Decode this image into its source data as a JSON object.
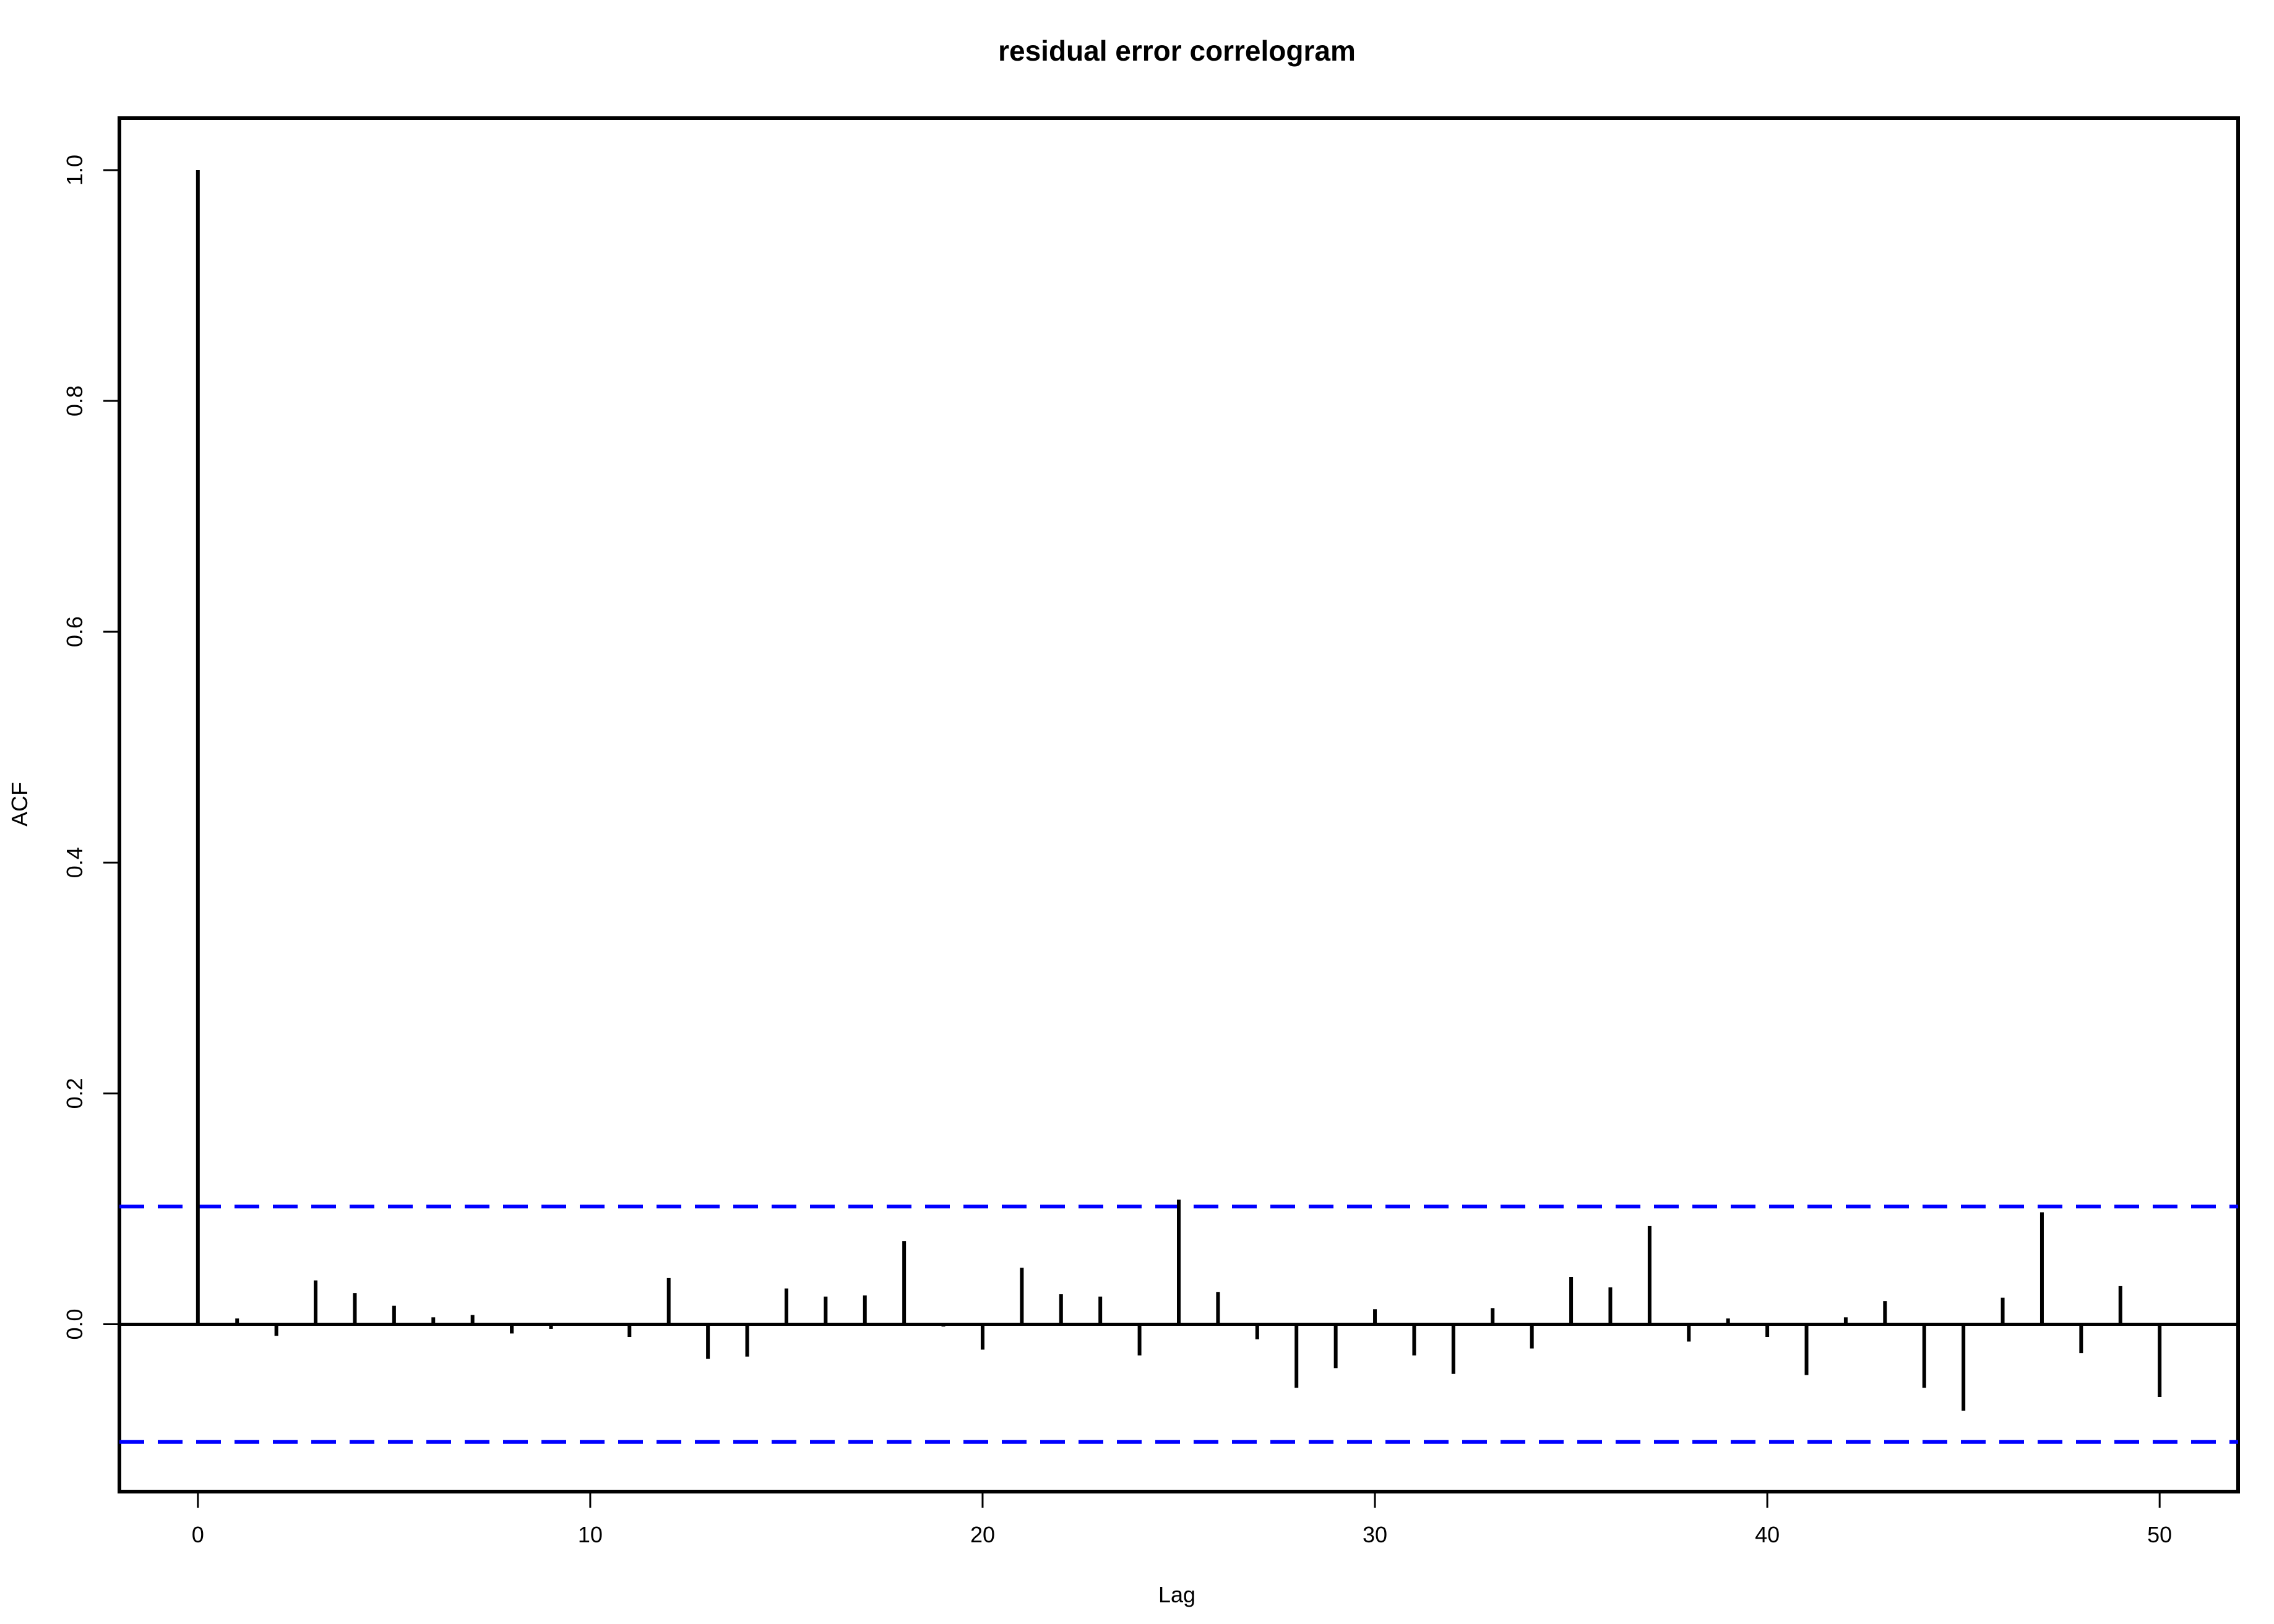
{
  "chart_data": {
    "type": "bar",
    "title": "residual error correlogram",
    "xlabel": "Lag",
    "ylabel": "ACF",
    "xlim": [
      -2,
      52
    ],
    "ylim": [
      -0.145,
      1.045
    ],
    "x_ticks": [
      0,
      10,
      20,
      30,
      40,
      50
    ],
    "x_tick_labels": [
      "0",
      "10",
      "20",
      "30",
      "40",
      "50"
    ],
    "y_ticks": [
      0.0,
      0.2,
      0.4,
      0.6,
      0.8,
      1.0
    ],
    "y_tick_labels": [
      "0.0",
      "0.2",
      "0.4",
      "0.6",
      "0.8",
      "1.0"
    ],
    "lags": [
      0,
      1,
      2,
      3,
      4,
      5,
      6,
      7,
      8,
      9,
      10,
      11,
      12,
      13,
      14,
      15,
      16,
      17,
      18,
      19,
      20,
      21,
      22,
      23,
      24,
      25,
      26,
      27,
      28,
      29,
      30,
      31,
      32,
      33,
      34,
      35,
      36,
      37,
      38,
      39,
      40,
      41,
      42,
      43,
      44,
      45,
      46,
      47,
      48,
      49,
      50
    ],
    "acf": [
      1.0,
      0.005,
      -0.01,
      0.038,
      0.027,
      0.016,
      0.006,
      0.008,
      -0.008,
      -0.004,
      0.0,
      -0.011,
      0.04,
      -0.03,
      -0.028,
      0.031,
      0.024,
      0.025,
      0.072,
      -0.002,
      -0.022,
      0.049,
      0.026,
      0.024,
      -0.027,
      0.108,
      0.028,
      -0.013,
      -0.055,
      -0.038,
      0.013,
      -0.027,
      -0.043,
      0.014,
      -0.021,
      0.041,
      0.032,
      0.085,
      -0.015,
      0.005,
      -0.011,
      -0.044,
      0.006,
      0.02,
      -0.055,
      -0.075,
      0.023,
      0.097,
      -0.025,
      0.033,
      -0.063
    ],
    "confidence_bounds": [
      0.102,
      -0.102
    ],
    "bound_color": "#0000ff",
    "line_color": "#000000",
    "grid": false,
    "legend": "none"
  }
}
